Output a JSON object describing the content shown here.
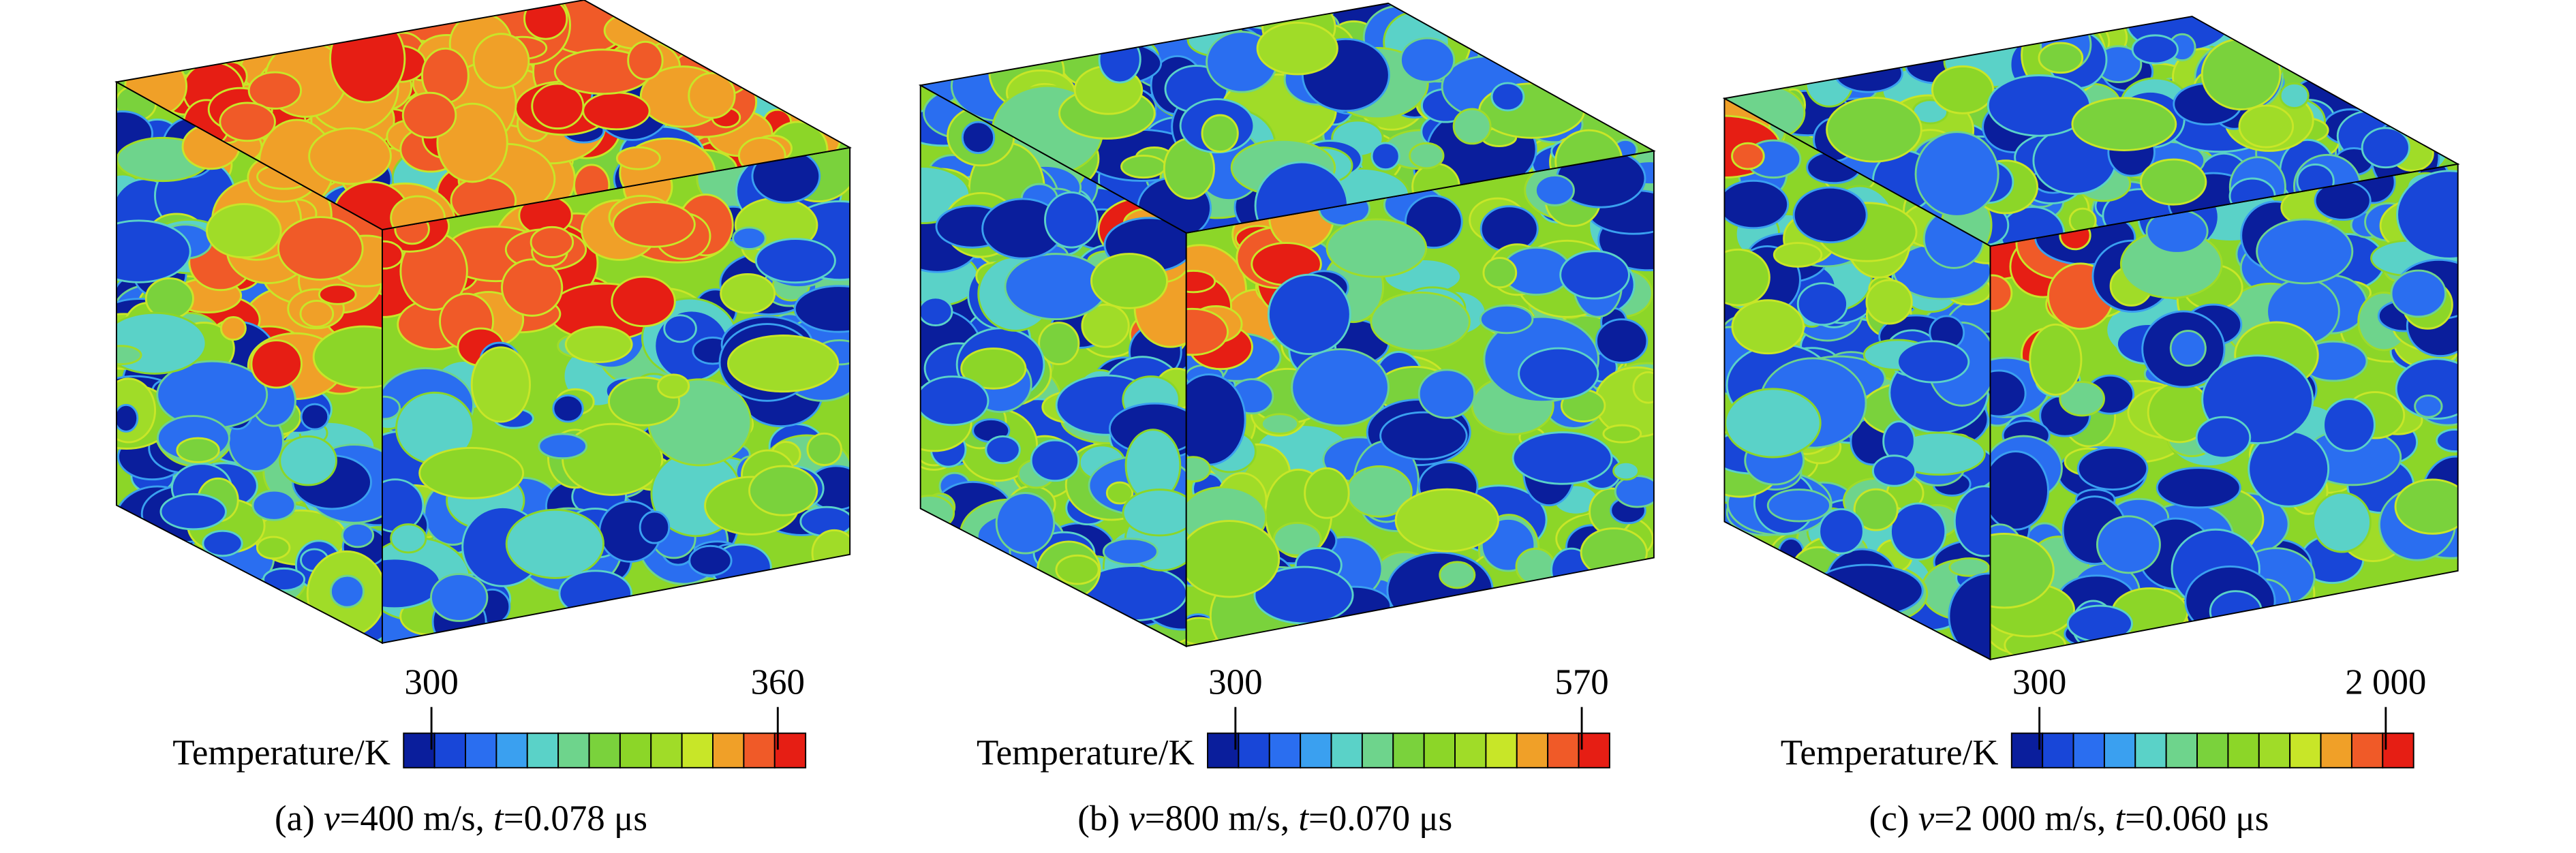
{
  "colormap": [
    "#0a1e9c",
    "#1846d8",
    "#2a6ef0",
    "#3aa0f0",
    "#5ad2c8",
    "#6ed48c",
    "#7ad23c",
    "#8cd628",
    "#a0dc28",
    "#c8e628",
    "#f0a028",
    "#f05a28",
    "#e61e14"
  ],
  "panels": [
    {
      "colorbar": {
        "label": "Temperature/K",
        "min_label": "300",
        "max_label": "360"
      },
      "caption": [
        "(a) ",
        "v",
        "=400 m/s, ",
        "t",
        "=0.078 μs"
      ]
    },
    {
      "colorbar": {
        "label": "Temperature/K",
        "min_label": "300",
        "max_label": "570"
      },
      "caption": [
        "(b) ",
        "v",
        "=800 m/s, ",
        "t",
        "=0.070 μs"
      ]
    },
    {
      "colorbar": {
        "label": "Temperature/K",
        "min_label": "300",
        "max_label": "2 000"
      },
      "caption": [
        "(c) ",
        "v",
        "=2 000 m/s, ",
        "t",
        "=0.060 μs"
      ]
    }
  ]
}
